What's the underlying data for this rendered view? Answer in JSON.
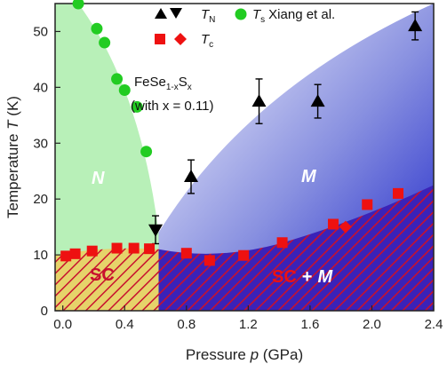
{
  "chart_data": {
    "type": "scatter",
    "xlabel": "Pressure p (GPa)",
    "ylabel": "Temperature T (K)",
    "xlim": [
      -0.05,
      2.4
    ],
    "ylim": [
      0,
      55
    ],
    "x_ticks": [
      "0.0",
      "0.4",
      "0.8",
      "1.2",
      "1.6",
      "2.0",
      "2.4"
    ],
    "x_tick_values": [
      0.0,
      0.4,
      0.8,
      1.2,
      1.6,
      2.0,
      2.4
    ],
    "y_ticks": [
      "0",
      "10",
      "20",
      "30",
      "40",
      "50"
    ],
    "y_tick_values": [
      0,
      10,
      20,
      30,
      40,
      50
    ],
    "legend_position": "top-right",
    "legend": {
      "tn_label": "T",
      "tn_sub": "N",
      "ts_label": "T",
      "ts_sub": "s",
      "ts_suffix": "Xiang et al.",
      "tc_label": "T",
      "tc_sub": "c"
    },
    "annotations": {
      "compound_main": "FeSe",
      "compound_sub1": "1-x",
      "compound_mid": "S",
      "compound_sub2": "x",
      "composition": "(with x = 0.11)",
      "region_n": "N",
      "region_m": "M",
      "region_sc": "SC",
      "region_scm_sc": "SC",
      "region_scm_plus": "+",
      "region_scm_m": "M"
    },
    "series": [
      {
        "name": "T_N",
        "marker": "triangle-up",
        "color": "#000000",
        "x": [
          0.83,
          1.27,
          1.65,
          2.28
        ],
        "y": [
          24,
          37.5,
          37.5,
          51
        ],
        "yerr": [
          3,
          4,
          3,
          2.5
        ]
      },
      {
        "name": "T_N",
        "marker": "triangle-down",
        "color": "#000000",
        "x": [
          0.6
        ],
        "y": [
          14.5
        ],
        "yerr": [
          2.5
        ]
      },
      {
        "name": "T_s Xiang et al.",
        "marker": "circle",
        "color": "#22cc22",
        "x": [
          0.1,
          0.22,
          0.27,
          0.35,
          0.4,
          0.48,
          0.54
        ],
        "y": [
          55,
          50.5,
          48,
          41.5,
          39.5,
          36.5,
          28.5
        ]
      },
      {
        "name": "T_c",
        "marker": "square",
        "color": "#ee1111",
        "x": [
          0.02,
          0.08,
          0.19,
          0.35,
          0.46,
          0.56,
          0.8,
          0.95,
          1.17,
          1.42,
          1.75,
          1.97,
          2.17
        ],
        "y": [
          9.8,
          10.2,
          10.7,
          11.2,
          11.2,
          11.1,
          10.3,
          9.0,
          9.9,
          12.2,
          15.5,
          19.0,
          21.0
        ]
      },
      {
        "name": "T_c",
        "marker": "diamond",
        "color": "#ee1111",
        "x": [
          1.83
        ],
        "y": [
          15.0
        ]
      }
    ]
  }
}
